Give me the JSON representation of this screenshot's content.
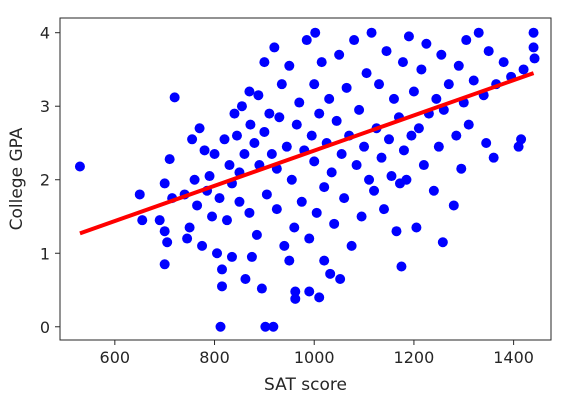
{
  "chart_data": {
    "type": "scatter",
    "title": "",
    "xlabel": "SAT score",
    "ylabel": "College GPA",
    "xlim": [
      490,
      1475
    ],
    "ylim": [
      -0.18,
      4.2
    ],
    "xticks": [
      600,
      800,
      1000,
      1200,
      1400
    ],
    "yticks": [
      0,
      1,
      2,
      3,
      4
    ],
    "grid": false,
    "legend": "none",
    "point_color": "#0000ff",
    "line_color": "#ff0000",
    "fit_line": {
      "x": [
        530,
        1440
      ],
      "y": [
        1.27,
        3.45
      ]
    },
    "points": [
      [
        530,
        2.18
      ],
      [
        650,
        1.8
      ],
      [
        655,
        1.45
      ],
      [
        690,
        1.45
      ],
      [
        700,
        1.95
      ],
      [
        700,
        1.3
      ],
      [
        705,
        1.15
      ],
      [
        700,
        0.85
      ],
      [
        710,
        2.28
      ],
      [
        715,
        1.75
      ],
      [
        720,
        3.12
      ],
      [
        740,
        1.8
      ],
      [
        745,
        1.2
      ],
      [
        750,
        1.35
      ],
      [
        755,
        2.55
      ],
      [
        760,
        2.0
      ],
      [
        765,
        1.65
      ],
      [
        770,
        2.7
      ],
      [
        775,
        1.1
      ],
      [
        780,
        2.4
      ],
      [
        785,
        1.85
      ],
      [
        790,
        2.05
      ],
      [
        795,
        1.5
      ],
      [
        800,
        2.35
      ],
      [
        805,
        1.0
      ],
      [
        810,
        1.75
      ],
      [
        812,
        0.0
      ],
      [
        815,
        0.55
      ],
      [
        815,
        0.78
      ],
      [
        820,
        2.55
      ],
      [
        825,
        1.45
      ],
      [
        830,
        2.2
      ],
      [
        835,
        1.95
      ],
      [
        835,
        0.95
      ],
      [
        840,
        2.9
      ],
      [
        845,
        2.6
      ],
      [
        850,
        1.7
      ],
      [
        850,
        2.1
      ],
      [
        855,
        3.0
      ],
      [
        860,
        2.35
      ],
      [
        862,
        0.65
      ],
      [
        870,
        1.55
      ],
      [
        870,
        3.2
      ],
      [
        872,
        2.75
      ],
      [
        875,
        0.95
      ],
      [
        880,
        2.5
      ],
      [
        885,
        1.25
      ],
      [
        888,
        3.15
      ],
      [
        890,
        2.2
      ],
      [
        895,
        0.52
      ],
      [
        900,
        3.6
      ],
      [
        900,
        2.65
      ],
      [
        902,
        0.0
      ],
      [
        905,
        1.8
      ],
      [
        910,
        2.9
      ],
      [
        915,
        2.35
      ],
      [
        918,
        0.0
      ],
      [
        920,
        3.8
      ],
      [
        925,
        1.6
      ],
      [
        925,
        2.15
      ],
      [
        930,
        2.85
      ],
      [
        935,
        3.3
      ],
      [
        940,
        1.1
      ],
      [
        945,
        2.45
      ],
      [
        950,
        3.55
      ],
      [
        950,
        0.9
      ],
      [
        955,
        2.0
      ],
      [
        960,
        1.35
      ],
      [
        962,
        0.48
      ],
      [
        962,
        0.38
      ],
      [
        965,
        2.75
      ],
      [
        970,
        3.05
      ],
      [
        975,
        1.7
      ],
      [
        980,
        2.4
      ],
      [
        985,
        3.9
      ],
      [
        990,
        0.48
      ],
      [
        990,
        1.2
      ],
      [
        995,
        2.6
      ],
      [
        1000,
        2.25
      ],
      [
        1000,
        3.3
      ],
      [
        1002,
        4.0
      ],
      [
        1005,
        1.55
      ],
      [
        1010,
        0.4
      ],
      [
        1010,
        2.9
      ],
      [
        1015,
        3.6
      ],
      [
        1020,
        0.9
      ],
      [
        1020,
        1.9
      ],
      [
        1025,
        2.5
      ],
      [
        1030,
        3.1
      ],
      [
        1032,
        0.72
      ],
      [
        1035,
        2.1
      ],
      [
        1040,
        1.4
      ],
      [
        1045,
        2.8
      ],
      [
        1050,
        3.7
      ],
      [
        1052,
        0.65
      ],
      [
        1055,
        2.35
      ],
      [
        1060,
        1.75
      ],
      [
        1065,
        3.25
      ],
      [
        1070,
        2.6
      ],
      [
        1075,
        1.1
      ],
      [
        1080,
        3.9
      ],
      [
        1085,
        2.2
      ],
      [
        1090,
        2.95
      ],
      [
        1095,
        1.5
      ],
      [
        1100,
        2.45
      ],
      [
        1105,
        3.45
      ],
      [
        1110,
        2.0
      ],
      [
        1115,
        4.0
      ],
      [
        1120,
        1.85
      ],
      [
        1125,
        2.7
      ],
      [
        1130,
        3.3
      ],
      [
        1135,
        2.3
      ],
      [
        1140,
        1.6
      ],
      [
        1145,
        3.75
      ],
      [
        1150,
        2.55
      ],
      [
        1155,
        2.05
      ],
      [
        1160,
        3.1
      ],
      [
        1165,
        1.3
      ],
      [
        1170,
        2.85
      ],
      [
        1172,
        1.95
      ],
      [
        1175,
        0.82
      ],
      [
        1178,
        3.6
      ],
      [
        1180,
        2.4
      ],
      [
        1185,
        2.0
      ],
      [
        1190,
        3.95
      ],
      [
        1195,
        2.6
      ],
      [
        1200,
        3.2
      ],
      [
        1205,
        1.35
      ],
      [
        1210,
        2.7
      ],
      [
        1215,
        3.5
      ],
      [
        1220,
        2.2
      ],
      [
        1225,
        3.85
      ],
      [
        1230,
        2.9
      ],
      [
        1240,
        1.85
      ],
      [
        1245,
        3.1
      ],
      [
        1250,
        2.45
      ],
      [
        1255,
        3.7
      ],
      [
        1258,
        1.15
      ],
      [
        1260,
        2.95
      ],
      [
        1270,
        3.3
      ],
      [
        1280,
        1.65
      ],
      [
        1285,
        2.6
      ],
      [
        1290,
        3.55
      ],
      [
        1295,
        2.15
      ],
      [
        1300,
        3.05
      ],
      [
        1305,
        3.9
      ],
      [
        1310,
        2.75
      ],
      [
        1320,
        3.35
      ],
      [
        1330,
        4.0
      ],
      [
        1340,
        3.15
      ],
      [
        1345,
        2.5
      ],
      [
        1350,
        3.75
      ],
      [
        1360,
        2.3
      ],
      [
        1365,
        3.3
      ],
      [
        1380,
        3.6
      ],
      [
        1395,
        3.4
      ],
      [
        1410,
        2.45
      ],
      [
        1415,
        2.55
      ],
      [
        1420,
        3.5
      ],
      [
        1440,
        4.0
      ],
      [
        1440,
        3.8
      ],
      [
        1442,
        3.65
      ]
    ]
  }
}
